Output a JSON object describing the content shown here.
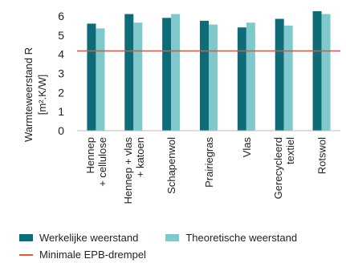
{
  "chart_data": {
    "type": "bar",
    "title": "",
    "ylabel_line1": "Warmteweerstand R",
    "ylabel_line2": "[m².K/W]",
    "ylim": [
      0,
      6.5
    ],
    "yticks": [
      0,
      1,
      2,
      3,
      4,
      5,
      6
    ],
    "categories": [
      [
        "Hennep",
        "+ cellulose"
      ],
      [
        "Hennep + vlas",
        "+ katoen"
      ],
      [
        "Schapenwol"
      ],
      [
        "Prairiegras"
      ],
      [
        "Vlas"
      ],
      [
        "Gerecycleerd",
        "textiel"
      ],
      [
        "Rotswol"
      ]
    ],
    "series": [
      {
        "name": "Werkelijke weerstand",
        "color": "#0e6b78",
        "values": [
          5.6,
          6.1,
          5.9,
          5.75,
          5.4,
          5.85,
          6.25
        ]
      },
      {
        "name": "Theoretische weerstand",
        "color": "#7fc8cc",
        "values": [
          5.35,
          5.65,
          6.1,
          5.55,
          5.65,
          5.5,
          6.1
        ]
      }
    ],
    "threshold": {
      "name": "Minimale EPB-drempel",
      "value": 4.17,
      "color": "#e0573a"
    },
    "grid": false,
    "legend_position": "bottom"
  }
}
